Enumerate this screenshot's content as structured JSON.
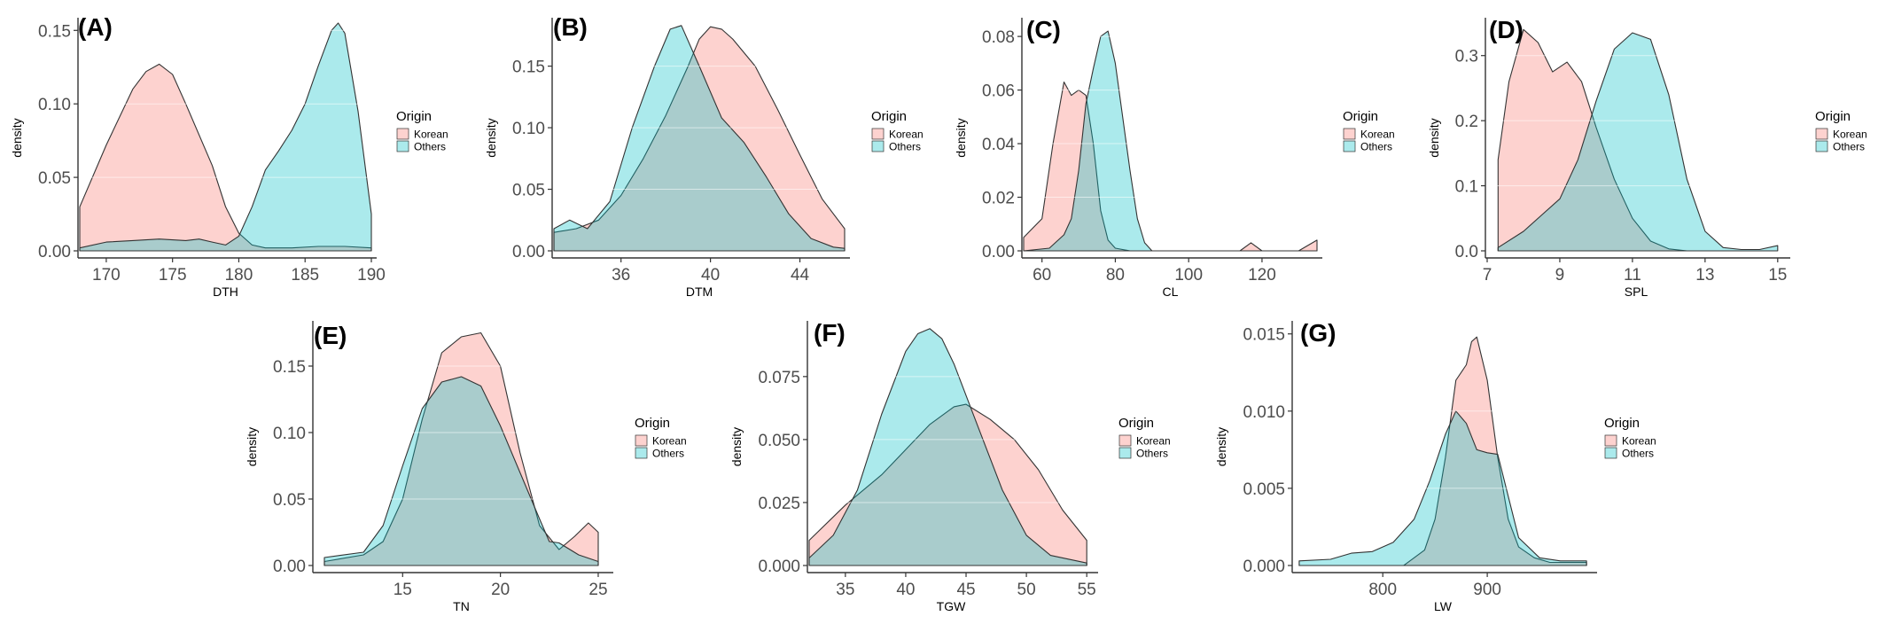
{
  "colors": {
    "korean": "#F8766D",
    "others": "#00BFC4",
    "outline": "#333333",
    "axis": "#333333",
    "grid": "#ffffff"
  },
  "chart_data": [
    {
      "id": "A",
      "type": "area",
      "label": "(A)",
      "xlabel": "DTH",
      "ylabel": "density",
      "xlim": [
        168,
        190
      ],
      "ylim": [
        0,
        0.155
      ],
      "xticks": [
        170,
        175,
        180,
        185,
        190
      ],
      "xtick_labels": [
        "170",
        "175",
        "180",
        "185",
        "190"
      ],
      "yticks": [
        0,
        0.05,
        0.1,
        0.15
      ],
      "ytick_labels": [
        "0.00",
        "0.05",
        "0.10",
        "0.15"
      ],
      "legend": {
        "title": "Origin",
        "entries": [
          "Korean",
          "Others"
        ],
        "position": "right"
      },
      "series": [
        {
          "name": "Korean",
          "x": [
            168,
            170,
            172,
            173,
            174,
            175,
            176,
            178,
            179,
            180,
            181,
            182,
            183,
            184,
            186,
            188,
            190
          ],
          "y": [
            0.03,
            0.072,
            0.11,
            0.122,
            0.127,
            0.12,
            0.1,
            0.058,
            0.03,
            0.012,
            0.004,
            0.002,
            0.002,
            0.002,
            0.003,
            0.003,
            0.002
          ]
        },
        {
          "name": "Others",
          "x": [
            168,
            170,
            172,
            174,
            176,
            177,
            178,
            179,
            180,
            181,
            182,
            183,
            184,
            185,
            186,
            187,
            187.5,
            188,
            189,
            190
          ],
          "y": [
            0.002,
            0.006,
            0.007,
            0.008,
            0.007,
            0.008,
            0.006,
            0.004,
            0.01,
            0.03,
            0.055,
            0.068,
            0.082,
            0.1,
            0.126,
            0.15,
            0.155,
            0.148,
            0.095,
            0.025
          ]
        }
      ]
    },
    {
      "id": "B",
      "type": "area",
      "label": "(B)",
      "xlabel": "DTM",
      "ylabel": "density",
      "xlim": [
        33,
        46
      ],
      "ylim": [
        0,
        0.185
      ],
      "xticks": [
        36,
        40,
        44
      ],
      "xtick_labels": [
        "36",
        "40",
        "44"
      ],
      "yticks": [
        0,
        0.05,
        0.1,
        0.15
      ],
      "ytick_labels": [
        "0.00",
        "0.05",
        "0.10",
        "0.15"
      ],
      "legend": {
        "title": "Origin",
        "entries": [
          "Korean",
          "Others"
        ],
        "position": "right"
      },
      "series": [
        {
          "name": "Korean",
          "x": [
            33,
            34,
            35,
            36,
            37,
            38,
            39,
            39.5,
            40,
            40.5,
            41,
            42,
            43,
            44,
            45,
            46
          ],
          "y": [
            0.015,
            0.018,
            0.025,
            0.045,
            0.075,
            0.11,
            0.15,
            0.172,
            0.182,
            0.18,
            0.172,
            0.15,
            0.115,
            0.078,
            0.042,
            0.018
          ]
        },
        {
          "name": "Others",
          "x": [
            33,
            33.7,
            34.5,
            35.5,
            36.5,
            37.5,
            38.2,
            38.7,
            39.5,
            40.5,
            41.5,
            42.5,
            43.5,
            44.5,
            45.5,
            46
          ],
          "y": [
            0.018,
            0.025,
            0.018,
            0.04,
            0.1,
            0.15,
            0.18,
            0.183,
            0.15,
            0.108,
            0.088,
            0.06,
            0.03,
            0.01,
            0.003,
            0.002
          ]
        }
      ]
    },
    {
      "id": "C",
      "type": "area",
      "label": "(C)",
      "xlabel": "CL",
      "ylabel": "density",
      "xlim": [
        55,
        135
      ],
      "ylim": [
        0,
        0.085
      ],
      "xticks": [
        60,
        80,
        100,
        120
      ],
      "xtick_labels": [
        "60",
        "80",
        "100",
        "120"
      ],
      "yticks": [
        0,
        0.02,
        0.04,
        0.06,
        0.08
      ],
      "ytick_labels": [
        "0.00",
        "0.02",
        "0.04",
        "0.06",
        "0.08"
      ],
      "legend": {
        "title": "Origin",
        "entries": [
          "Korean",
          "Others"
        ],
        "position": "right"
      },
      "series": [
        {
          "name": "Korean",
          "x": [
            55,
            60,
            63,
            66,
            68,
            70,
            72,
            74,
            76,
            78,
            80,
            84,
            100,
            114,
            117,
            120,
            130,
            135
          ],
          "y": [
            0.005,
            0.012,
            0.04,
            0.063,
            0.058,
            0.06,
            0.058,
            0.04,
            0.015,
            0.004,
            0.001,
            0.0,
            0.0,
            0.0,
            0.003,
            0.0,
            0.0,
            0.004
          ]
        },
        {
          "name": "Others",
          "x": [
            55,
            62,
            66,
            68,
            70,
            72,
            74,
            76,
            78,
            80,
            82,
            84,
            86,
            88,
            90,
            100,
            135
          ],
          "y": [
            0.0,
            0.001,
            0.006,
            0.012,
            0.03,
            0.055,
            0.068,
            0.08,
            0.082,
            0.07,
            0.05,
            0.03,
            0.012,
            0.003,
            0.0,
            0.0,
            0.0
          ]
        }
      ]
    },
    {
      "id": "D",
      "type": "area",
      "label": "(D)",
      "xlabel": "SPL",
      "ylabel": "density",
      "xlim": [
        7,
        15.2
      ],
      "ylim": [
        0,
        0.35
      ],
      "xticks": [
        7,
        9,
        11,
        13,
        15
      ],
      "xtick_labels": [
        "7",
        "9",
        "11",
        "13",
        "15"
      ],
      "yticks": [
        0,
        0.1,
        0.2,
        0.3
      ],
      "ytick_labels": [
        "0.0",
        "0.1",
        "0.2",
        "0.3"
      ],
      "legend": {
        "title": "Origin",
        "entries": [
          "Korean",
          "Others"
        ],
        "position": "right"
      },
      "series": [
        {
          "name": "Korean",
          "x": [
            7.3,
            7.6,
            8.0,
            8.4,
            8.8,
            9.2,
            9.6,
            10.0,
            10.5,
            11.0,
            11.5,
            12.0,
            12.5
          ],
          "y": [
            0.14,
            0.26,
            0.34,
            0.32,
            0.275,
            0.29,
            0.26,
            0.19,
            0.11,
            0.05,
            0.015,
            0.003,
            0.0
          ]
        },
        {
          "name": "Others",
          "x": [
            7.3,
            8.0,
            8.5,
            9.0,
            9.5,
            10.0,
            10.5,
            11.0,
            11.5,
            12.0,
            12.5,
            13.0,
            13.5,
            14.0,
            14.5,
            15.0
          ],
          "y": [
            0.005,
            0.03,
            0.055,
            0.08,
            0.14,
            0.23,
            0.31,
            0.335,
            0.325,
            0.24,
            0.11,
            0.03,
            0.005,
            0.002,
            0.002,
            0.008
          ]
        }
      ]
    },
    {
      "id": "E",
      "type": "area",
      "label": "(E)",
      "xlabel": "TN",
      "ylabel": "density",
      "xlim": [
        10.5,
        25.5
      ],
      "ylim": [
        0,
        0.18
      ],
      "xticks": [
        15,
        20,
        25
      ],
      "xtick_labels": [
        "15",
        "20",
        "25"
      ],
      "yticks": [
        0,
        0.05,
        0.1,
        0.15
      ],
      "ytick_labels": [
        "0.00",
        "0.05",
        "0.10",
        "0.15"
      ],
      "legend": {
        "title": "Origin",
        "entries": [
          "Korean",
          "Others"
        ],
        "position": "right"
      },
      "series": [
        {
          "name": "Korean",
          "x": [
            11,
            13,
            14,
            15,
            16,
            17,
            18,
            19,
            20,
            21,
            22,
            23,
            23.8,
            24.5,
            25
          ],
          "y": [
            0.003,
            0.008,
            0.018,
            0.05,
            0.11,
            0.16,
            0.172,
            0.175,
            0.15,
            0.085,
            0.03,
            0.012,
            0.022,
            0.032,
            0.025
          ]
        },
        {
          "name": "Others",
          "x": [
            11,
            13,
            14,
            15,
            16,
            17,
            18,
            19,
            20,
            21,
            22,
            22.5,
            23,
            24,
            25
          ],
          "y": [
            0.006,
            0.01,
            0.03,
            0.075,
            0.118,
            0.138,
            0.142,
            0.135,
            0.105,
            0.07,
            0.035,
            0.018,
            0.017,
            0.008,
            0.003
          ]
        }
      ]
    },
    {
      "id": "F",
      "type": "area",
      "label": "(F)",
      "xlabel": "TGW",
      "ylabel": "density",
      "xlim": [
        32,
        55.5
      ],
      "ylim": [
        0,
        0.095
      ],
      "xticks": [
        35,
        40,
        45,
        50,
        55
      ],
      "xtick_labels": [
        "35",
        "40",
        "45",
        "50",
        "55"
      ],
      "yticks": [
        0,
        0.025,
        0.05,
        0.075
      ],
      "ytick_labels": [
        "0.000",
        "0.025",
        "0.050",
        "0.075"
      ],
      "legend": {
        "title": "Origin",
        "entries": [
          "Korean",
          "Others"
        ],
        "position": "right"
      },
      "series": [
        {
          "name": "Korean",
          "x": [
            32,
            35,
            38,
            40,
            42,
            44,
            45,
            47,
            49,
            51,
            53,
            55
          ],
          "y": [
            0.01,
            0.024,
            0.036,
            0.046,
            0.056,
            0.063,
            0.064,
            0.058,
            0.05,
            0.038,
            0.022,
            0.01
          ]
        },
        {
          "name": "Others",
          "x": [
            32,
            34,
            36,
            38,
            40,
            41,
            42,
            43,
            44,
            46,
            48,
            50,
            52,
            55
          ],
          "y": [
            0.003,
            0.012,
            0.03,
            0.06,
            0.085,
            0.092,
            0.094,
            0.09,
            0.08,
            0.055,
            0.03,
            0.012,
            0.004,
            0.001
          ]
        }
      ]
    },
    {
      "id": "G",
      "type": "area",
      "label": "(G)",
      "xlabel": "LW",
      "ylabel": "density",
      "xlim": [
        715,
        1000
      ],
      "ylim": [
        0,
        0.0155
      ],
      "xticks": [
        800,
        900
      ],
      "xtick_labels": [
        "800",
        "900"
      ],
      "yticks": [
        0,
        0.005,
        0.01,
        0.015
      ],
      "ytick_labels": [
        "0.000",
        "0.005",
        "0.010",
        "0.015"
      ],
      "legend": {
        "title": "Origin",
        "entries": [
          "Korean",
          "Others"
        ],
        "position": "right"
      },
      "series": [
        {
          "name": "Korean",
          "x": [
            720,
            780,
            820,
            840,
            850,
            860,
            870,
            880,
            885,
            890,
            900,
            910,
            920,
            930,
            945,
            960,
            995
          ],
          "y": [
            0.0,
            0.0,
            0.0,
            0.001,
            0.003,
            0.007,
            0.012,
            0.013,
            0.0145,
            0.0148,
            0.012,
            0.007,
            0.003,
            0.0012,
            0.0005,
            0.0002,
            0.0002
          ]
        },
        {
          "name": "Others",
          "x": [
            720,
            750,
            770,
            790,
            810,
            830,
            845,
            860,
            870,
            880,
            890,
            900,
            910,
            920,
            930,
            950,
            970,
            995
          ],
          "y": [
            0.0003,
            0.0004,
            0.0008,
            0.0009,
            0.0015,
            0.003,
            0.0055,
            0.0085,
            0.01,
            0.0092,
            0.0075,
            0.0073,
            0.0072,
            0.0045,
            0.0018,
            0.0005,
            0.0003,
            0.0003
          ]
        }
      ]
    }
  ]
}
